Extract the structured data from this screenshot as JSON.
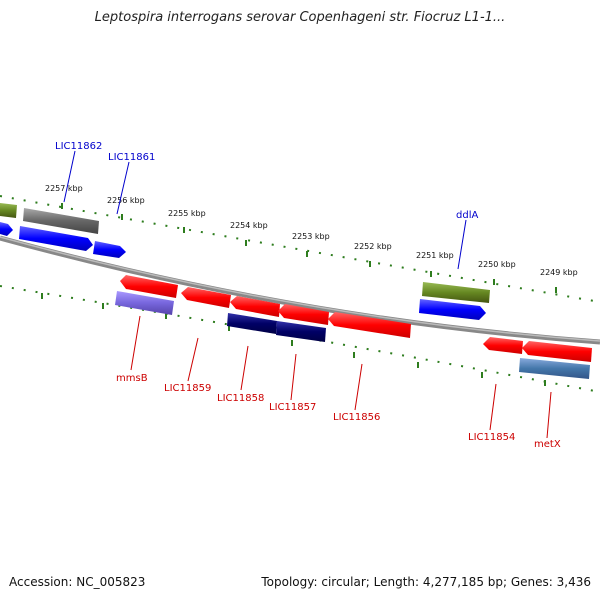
{
  "title": "Leptospira interrogans serovar Copenhageni str. Fiocruz L1-1...",
  "footer": {
    "accession": "Accession: NC_005823",
    "summary": "Topology: circular; Length: 4,277,185 bp; Genes: 3,436"
  },
  "colors": {
    "backbone": "#888888",
    "ticks": "#2e7d1e",
    "forward_label": "#0000cc",
    "reverse_label": "#cc0000",
    "gene_red": "#ff1111",
    "gene_blue": "#1111ff",
    "gene_navy": "#000066",
    "gene_green": "#669922",
    "gene_gray": "#777777",
    "gene_lavender": "#7766dd",
    "gene_steel": "#4477aa"
  },
  "kbp_labels": [
    "2257 kbp",
    "2256 kbp",
    "2255 kbp",
    "2254 kbp",
    "2253 kbp",
    "2252 kbp",
    "2251 kbp",
    "2250 kbp",
    "2249 kbp"
  ],
  "forward_gene_labels": [
    "LIC11862",
    "LIC11861",
    "ddlA"
  ],
  "reverse_gene_labels": [
    "mmsB",
    "LIC11859",
    "LIC11858",
    "LIC11857",
    "LIC11856",
    "LIC11854",
    "metX"
  ]
}
